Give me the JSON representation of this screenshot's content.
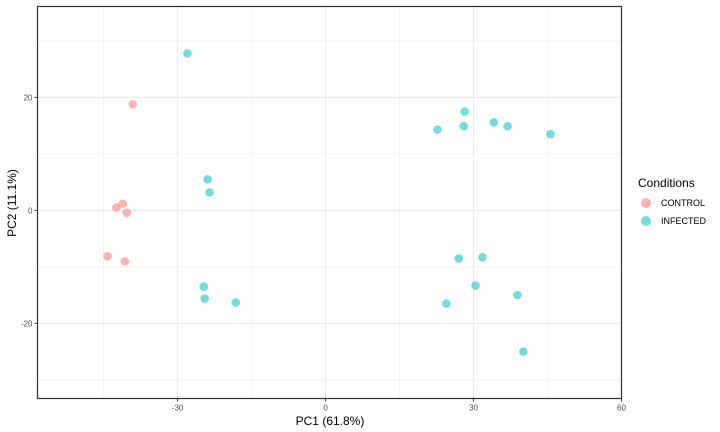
{
  "chart_data": {
    "type": "scatter",
    "title": "",
    "xlabel": "PC1 (61.8%)",
    "ylabel": "PC2 (11.1%)",
    "xlim": [
      -58.4,
      60
    ],
    "ylim": [
      -33.3,
      36.1
    ],
    "x_ticks": [
      -30,
      0,
      30,
      60
    ],
    "y_ticks": [
      -20,
      0,
      20
    ],
    "grid": true,
    "legend": {
      "title": "Conditions",
      "position": "right"
    },
    "series": [
      {
        "name": "CONTROL",
        "color": "#F8766D",
        "points": [
          [
            -39.1,
            18.8
          ],
          [
            -41.1,
            1.2
          ],
          [
            -42.4,
            0.5
          ],
          [
            -40.3,
            -0.4
          ],
          [
            -44.2,
            -8.1
          ],
          [
            -40.7,
            -9.0
          ]
        ]
      },
      {
        "name": "INFECTED",
        "color": "#00BFC4",
        "points": [
          [
            -28.0,
            27.8
          ],
          [
            -23.9,
            5.5
          ],
          [
            -23.5,
            3.2
          ],
          [
            -24.7,
            -13.5
          ],
          [
            -24.5,
            -15.6
          ],
          [
            -18.2,
            -16.3
          ],
          [
            22.7,
            14.3
          ],
          [
            28.2,
            17.5
          ],
          [
            28.0,
            14.9
          ],
          [
            34.1,
            15.6
          ],
          [
            36.9,
            14.9
          ],
          [
            45.6,
            13.5
          ],
          [
            27.0,
            -8.5
          ],
          [
            31.8,
            -8.3
          ],
          [
            30.4,
            -13.3
          ],
          [
            24.5,
            -16.5
          ],
          [
            38.9,
            -15.0
          ],
          [
            40.1,
            -25.0
          ]
        ]
      }
    ]
  },
  "legend": {
    "title": "Conditions",
    "items": [
      {
        "label": "CONTROL",
        "color": "#F8766D"
      },
      {
        "label": "INFECTED",
        "color": "#00BFC4"
      }
    ]
  },
  "axes": {
    "x_title": "PC1 (61.8%)",
    "y_title": "PC2 (11.1%)"
  }
}
